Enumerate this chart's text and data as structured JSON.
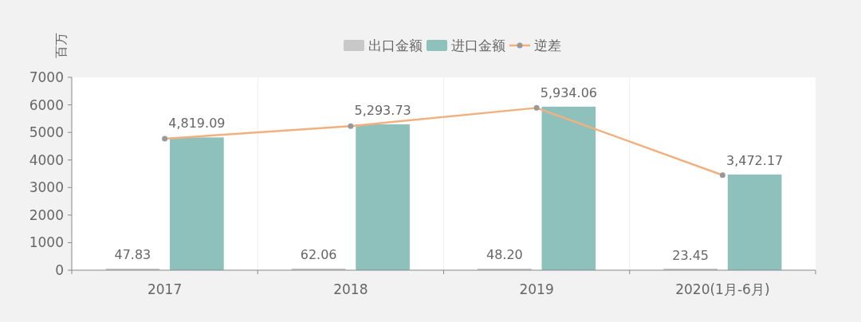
{
  "chart_data": {
    "type": "bar",
    "ylabel": "百万",
    "categories": [
      "2017",
      "2018",
      "2019",
      "2020(1月-6月)"
    ],
    "series": [
      {
        "name": "出口金额",
        "color": "#c8c8c8",
        "values": [
          47.83,
          62.06,
          48.2,
          23.45
        ],
        "value_labels": [
          "47.83",
          "62.06",
          "48.20",
          "23.45"
        ]
      },
      {
        "name": "进口金额",
        "color": "#8fc1bc",
        "values": [
          4819.09,
          5293.73,
          5934.06,
          3472.17
        ],
        "value_labels": [
          "4,819.09",
          "5,293.73",
          "5,934.06",
          "3,472.17"
        ]
      },
      {
        "name": "逆差",
        "type": "line",
        "color": "#f3b07f",
        "values": [
          4770,
          5230,
          5890,
          3450
        ]
      }
    ],
    "ylim": [
      0,
      7000
    ],
    "yticks": [
      0,
      1000,
      2000,
      3000,
      4000,
      5000,
      6000,
      7000
    ],
    "grid": "x",
    "legend": "top",
    "marker": "circle"
  }
}
